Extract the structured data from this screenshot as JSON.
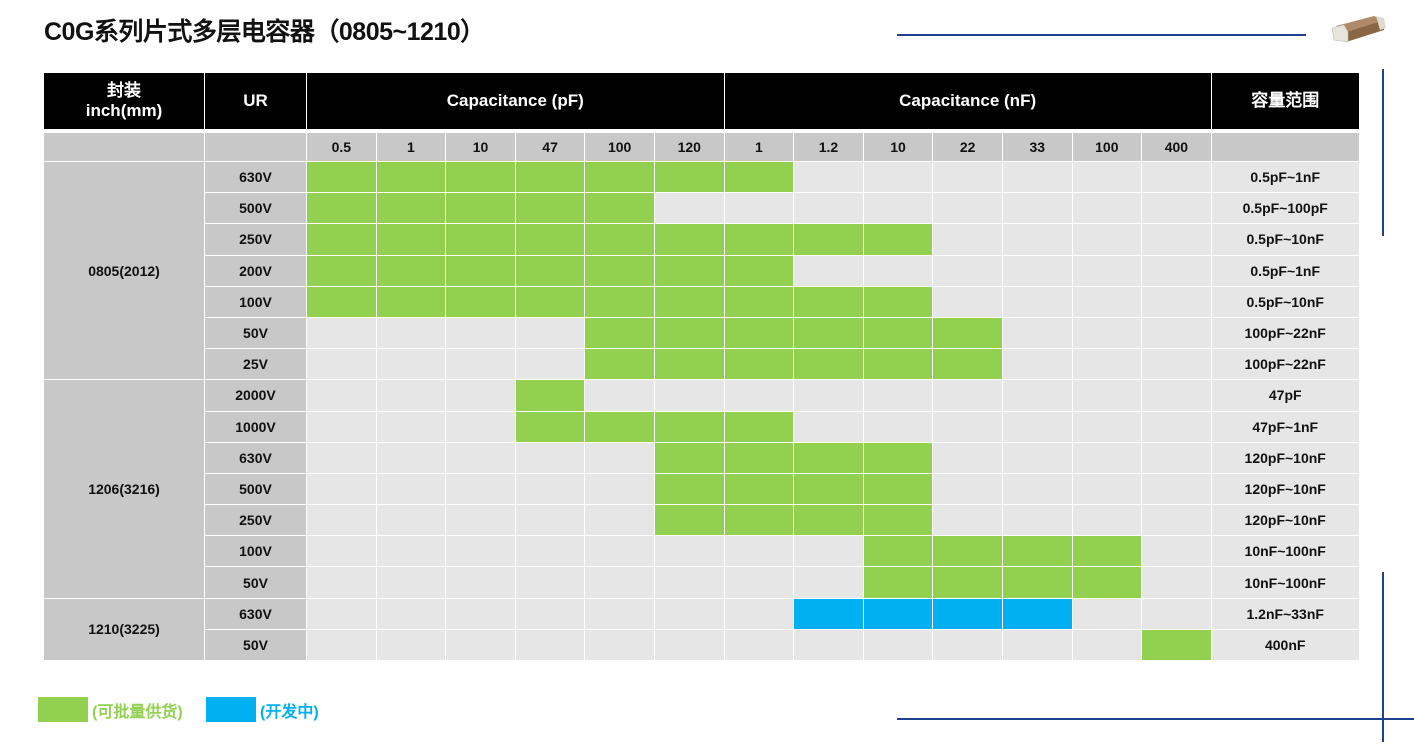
{
  "title": "C0G系列片式多层电容器（0805~1210）",
  "header": {
    "package": "封装",
    "package_unit": "inch(mm)",
    "ur": "UR",
    "cap_pf": "Capacitance (pF)",
    "cap_nf": "Capacitance (nF)",
    "range": "容量范围"
  },
  "columns": [
    "0.5",
    "1",
    "10",
    "47",
    "100",
    "120",
    "1",
    "1.2",
    "10",
    "22",
    "33",
    "100",
    "400"
  ],
  "colors": {
    "available": "#92d050",
    "developing": "#00b0f0",
    "accent_line": "#1f3f8f"
  },
  "groups": [
    {
      "package": "0805(2012)",
      "rows": [
        {
          "ur": "630V",
          "from": 0,
          "to": 6,
          "status": "available",
          "range": "0.5pF~1nF"
        },
        {
          "ur": "500V",
          "from": 0,
          "to": 4,
          "status": "available",
          "range": "0.5pF~100pF"
        },
        {
          "ur": "250V",
          "from": 0,
          "to": 8,
          "status": "available",
          "range": "0.5pF~10nF"
        },
        {
          "ur": "200V",
          "from": 0,
          "to": 6,
          "status": "available",
          "range": "0.5pF~1nF"
        },
        {
          "ur": "100V",
          "from": 0,
          "to": 8,
          "status": "available",
          "range": "0.5pF~10nF"
        },
        {
          "ur": "50V",
          "from": 4,
          "to": 9,
          "status": "available",
          "range": "100pF~22nF"
        },
        {
          "ur": "25V",
          "from": 4,
          "to": 9,
          "status": "available",
          "range": "100pF~22nF"
        }
      ]
    },
    {
      "package": "1206(3216)",
      "rows": [
        {
          "ur": "2000V",
          "from": 3,
          "to": 3,
          "status": "available",
          "range": "47pF"
        },
        {
          "ur": "1000V",
          "from": 3,
          "to": 6,
          "status": "available",
          "range": "47pF~1nF"
        },
        {
          "ur": "630V",
          "from": 5,
          "to": 8,
          "status": "available",
          "range": "120pF~10nF"
        },
        {
          "ur": "500V",
          "from": 5,
          "to": 8,
          "status": "available",
          "range": "120pF~10nF"
        },
        {
          "ur": "250V",
          "from": 5,
          "to": 8,
          "status": "available",
          "range": "120pF~10nF"
        },
        {
          "ur": "100V",
          "from": 8,
          "to": 11,
          "status": "available",
          "range": "10nF~100nF"
        },
        {
          "ur": "50V",
          "from": 8,
          "to": 11,
          "status": "available",
          "range": "10nF~100nF"
        }
      ]
    },
    {
      "package": "1210(3225)",
      "rows": [
        {
          "ur": "630V",
          "from": 7,
          "to": 10,
          "status": "developing",
          "range": "1.2nF~33nF"
        },
        {
          "ur": "50V",
          "from": 12,
          "to": 12,
          "status": "available",
          "range": "400nF"
        }
      ]
    }
  ],
  "legend": {
    "available": "(可批量供货)",
    "developing": "(开发中)"
  }
}
